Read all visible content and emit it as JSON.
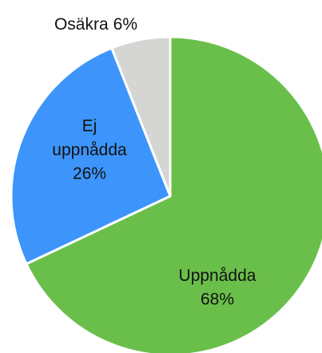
{
  "chart_data": {
    "type": "pie",
    "categories": [
      "Uppnådda",
      "Ej uppnådda",
      "Osäkra"
    ],
    "values": [
      68,
      26,
      6
    ],
    "value_labels": [
      "68%",
      "26%",
      "6%"
    ],
    "colors": [
      "#6abf4b",
      "#3d95fb",
      "#d5d5d3"
    ]
  }
}
